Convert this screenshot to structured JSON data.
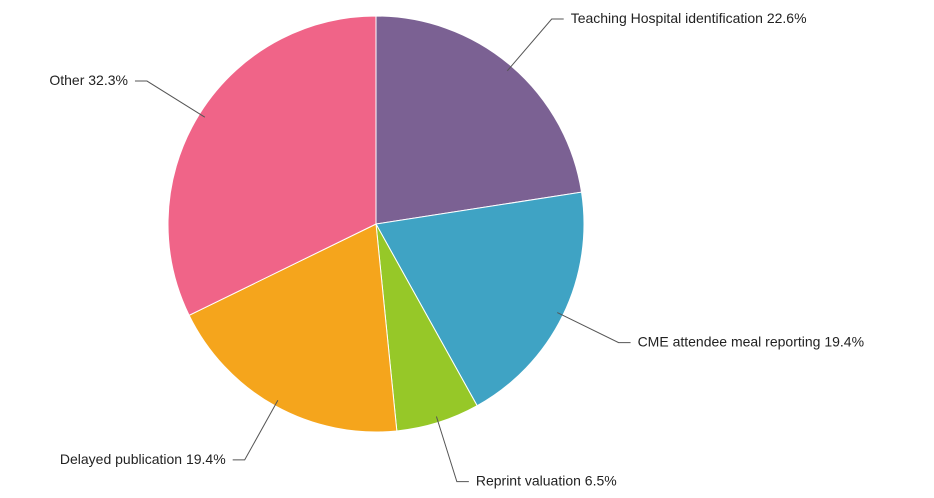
{
  "chart_data": {
    "type": "pie",
    "categories": [
      "Teaching Hospital identification",
      "CME attendee meal reporting",
      "Reprint valuation",
      "Delayed publication",
      "Other"
    ],
    "values": [
      22.6,
      19.4,
      6.5,
      19.4,
      32.3
    ],
    "value_labels": [
      "22.6%",
      "19.4%",
      "6.5%",
      "19.4%",
      "32.3%"
    ],
    "colors": [
      "#7b6193",
      "#3fa3c4",
      "#96c828",
      "#f5a51c",
      "#f06488"
    ]
  }
}
